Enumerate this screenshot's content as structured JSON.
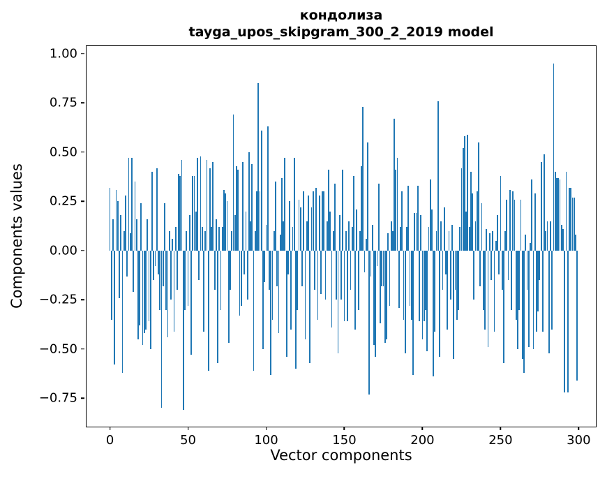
{
  "title": {
    "line1": "кондолиза",
    "line2": "tayga_upos_skipgram_300_2_2019 model"
  },
  "axes": {
    "xlabel": "Vector components",
    "ylabel": "Components values",
    "xticks": [
      {
        "value": 0,
        "label": "0"
      },
      {
        "value": 50,
        "label": "50"
      },
      {
        "value": 100,
        "label": "100"
      },
      {
        "value": 150,
        "label": "150"
      },
      {
        "value": 200,
        "label": "200"
      },
      {
        "value": 250,
        "label": "250"
      },
      {
        "value": 300,
        "label": "300"
      }
    ],
    "yticks": [
      {
        "value": 1.0,
        "label": "1.00"
      },
      {
        "value": 0.75,
        "label": "0.75"
      },
      {
        "value": 0.5,
        "label": "0.50"
      },
      {
        "value": 0.25,
        "label": "0.25"
      },
      {
        "value": 0.0,
        "label": "0.00"
      },
      {
        "value": -0.25,
        "label": "−0.25"
      },
      {
        "value": -0.5,
        "label": "−0.50"
      },
      {
        "value": -0.75,
        "label": "−0.75"
      }
    ]
  },
  "chart_data": {
    "type": "bar",
    "title": "кондолиза — tayga_upos_skipgram_300_2_2019 model",
    "xlabel": "Vector components",
    "ylabel": "Components values",
    "n_components": 300,
    "x_range": [
      -15,
      311
    ],
    "y_range": [
      -0.894,
      1.039
    ],
    "bar_color": "#1f77b4",
    "bar_width_units": 0.8,
    "grid": false,
    "legend": false,
    "values": [
      0.32,
      -0.35,
      0.16,
      -0.58,
      0.31,
      0.25,
      -0.24,
      0.18,
      -0.62,
      0.1,
      0.28,
      -0.13,
      0.47,
      0.09,
      0.47,
      -0.21,
      0.35,
      0.16,
      -0.45,
      -0.38,
      0.24,
      -0.48,
      -0.42,
      -0.4,
      0.16,
      -0.36,
      -0.5,
      0.4,
      -0.15,
      -0.08,
      0.42,
      -0.12,
      -0.3,
      -0.8,
      -0.18,
      0.24,
      -0.3,
      -0.44,
      0.1,
      -0.25,
      0.06,
      -0.41,
      0.12,
      -0.2,
      0.39,
      0.38,
      0.46,
      -0.81,
      -0.3,
      0.1,
      -0.28,
      0.18,
      -0.53,
      0.38,
      0.38,
      0.2,
      0.47,
      -0.15,
      0.48,
      0.12,
      -0.41,
      0.1,
      0.46,
      -0.61,
      0.42,
      0.12,
      0.45,
      -0.2,
      0.16,
      -0.57,
      0.12,
      -0.3,
      0.12,
      0.31,
      0.29,
      0.25,
      -0.47,
      -0.2,
      0.1,
      0.69,
      0.18,
      0.43,
      0.41,
      -0.33,
      -0.28,
      0.45,
      -0.12,
      0.2,
      -0.25,
      0.5,
      0.15,
      0.44,
      -0.61,
      0.1,
      0.3,
      0.85,
      0.3,
      0.61,
      -0.5,
      -0.16,
      0.13,
      0.63,
      -0.2,
      -0.63,
      -0.35,
      0.1,
      0.35,
      -0.18,
      -0.42,
      0.08,
      0.37,
      0.15,
      0.47,
      -0.54,
      -0.12,
      0.25,
      -0.4,
      0.12,
      0.47,
      -0.6,
      -0.3,
      0.26,
      0.22,
      -0.18,
      0.3,
      -0.45,
      0.15,
      0.28,
      -0.57,
      0.22,
      0.3,
      -0.2,
      0.32,
      -0.35,
      0.28,
      -0.22,
      0.3,
      0.3,
      -0.25,
      0.15,
      0.41,
      0.2,
      -0.39,
      0.1,
      0.34,
      -0.25,
      -0.52,
      0.18,
      -0.25,
      0.41,
      -0.36,
      0.1,
      -0.36,
      0.15,
      -0.2,
      0.12,
      0.38,
      -0.4,
      0.21,
      -0.3,
      0.1,
      0.43,
      0.73,
      -0.11,
      0.06,
      0.55,
      -0.73,
      -0.13,
      0.13,
      -0.48,
      -0.54,
      -0.08,
      0.34,
      -0.37,
      -0.18,
      -0.18,
      -0.47,
      -0.45,
      0.09,
      -0.28,
      0.15,
      0.1,
      0.67,
      0.41,
      0.47,
      -0.29,
      0.12,
      0.3,
      -0.35,
      -0.52,
      0.12,
      0.33,
      -0.28,
      -0.35,
      -0.63,
      0.19,
      0.19,
      0.33,
      -0.36,
      0.18,
      -0.45,
      -0.36,
      -0.3,
      -0.51,
      0.12,
      0.36,
      0.21,
      -0.64,
      -0.41,
      0.1,
      0.76,
      -0.54,
      0.15,
      -0.2,
      0.22,
      -0.12,
      -0.4,
      0.1,
      -0.25,
      0.13,
      -0.55,
      -0.2,
      -0.35,
      -0.3,
      0.12,
      0.42,
      0.52,
      0.58,
      0.2,
      0.59,
      0.12,
      0.4,
      0.29,
      -0.25,
      0.15,
      0.3,
      0.55,
      -0.18,
      0.24,
      -0.3,
      -0.4,
      0.11,
      -0.49,
      0.09,
      -0.15,
      0.1,
      -0.41,
      0.05,
      0.18,
      -0.12,
      0.38,
      -0.2,
      -0.57,
      0.1,
      0.26,
      -0.15,
      0.31,
      -0.3,
      0.3,
      0.26,
      -0.35,
      -0.5,
      -0.3,
      0.26,
      -0.55,
      -0.62,
      0.08,
      -0.2,
      -0.49,
      0.04,
      0.36,
      -0.5,
      0.29,
      -0.41,
      -0.31,
      -0.15,
      0.45,
      -0.41,
      0.49,
      0.1,
      0.15,
      -0.52,
      0.15,
      -0.4,
      0.95,
      0.4,
      0.37,
      0.37,
      0.36,
      0.13,
      0.11,
      -0.72,
      0.4,
      -0.72,
      0.32,
      0.32,
      0.27,
      0.27,
      0.08,
      -0.66
    ]
  }
}
